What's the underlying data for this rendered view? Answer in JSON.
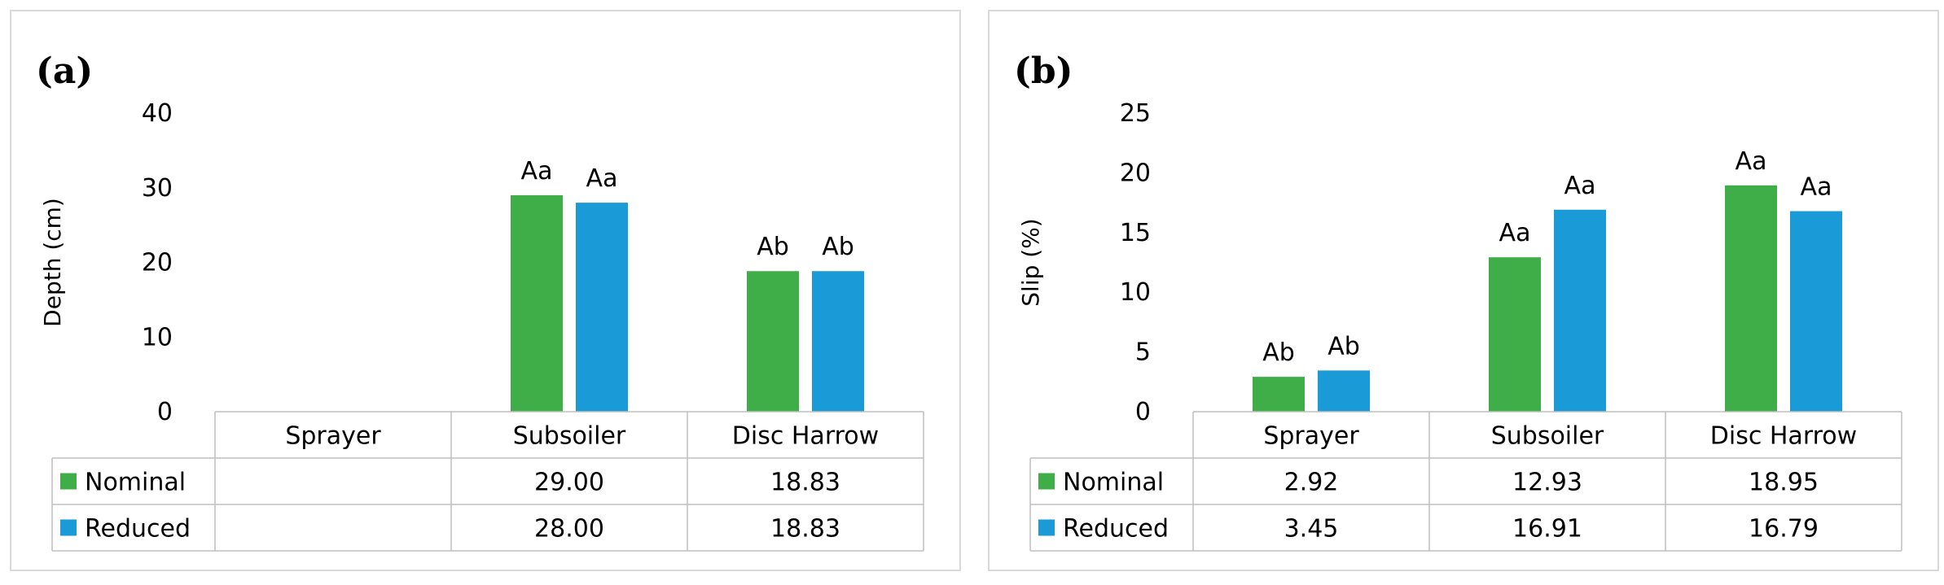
{
  "chart_data": [
    {
      "type": "bar",
      "panel_label": "(a)",
      "ylabel": "Depth (cm)",
      "ylim": [
        0,
        40
      ],
      "yticks": [
        "0",
        "10",
        "20",
        "30",
        "40"
      ],
      "categories": [
        "Sprayer",
        "Subsoiler",
        "Disc Harrow"
      ],
      "series": [
        {
          "name": "Nominal",
          "color": "#3fae49",
          "values": [
            null,
            29.0,
            18.83
          ],
          "labels": [
            "",
            "29.00",
            "18.83"
          ],
          "significance": [
            "",
            "Aa",
            "Ab"
          ]
        },
        {
          "name": "Reduced",
          "color": "#1a9ad6",
          "values": [
            null,
            28.0,
            18.83
          ],
          "labels": [
            "",
            "28.00",
            "18.83"
          ],
          "significance": [
            "",
            "Aa",
            "Ab"
          ]
        }
      ],
      "grid": false,
      "data_table": true
    },
    {
      "type": "bar",
      "panel_label": "(b)",
      "ylabel": "Slip (%)",
      "ylim": [
        0,
        25
      ],
      "yticks": [
        "0",
        "5",
        "10",
        "15",
        "20",
        "25"
      ],
      "categories": [
        "Sprayer",
        "Subsoiler",
        "Disc Harrow"
      ],
      "series": [
        {
          "name": "Nominal",
          "color": "#3fae49",
          "values": [
            2.92,
            12.93,
            18.95
          ],
          "labels": [
            "2.92",
            "12.93",
            "18.95"
          ],
          "significance": [
            "Ab",
            "Aa",
            "Aa"
          ]
        },
        {
          "name": "Reduced",
          "color": "#1a9ad6",
          "values": [
            3.45,
            16.91,
            16.79
          ],
          "labels": [
            "3.45",
            "16.91",
            "16.79"
          ],
          "significance": [
            "Ab",
            "Aa",
            "Aa"
          ]
        }
      ],
      "grid": false,
      "data_table": true
    }
  ]
}
